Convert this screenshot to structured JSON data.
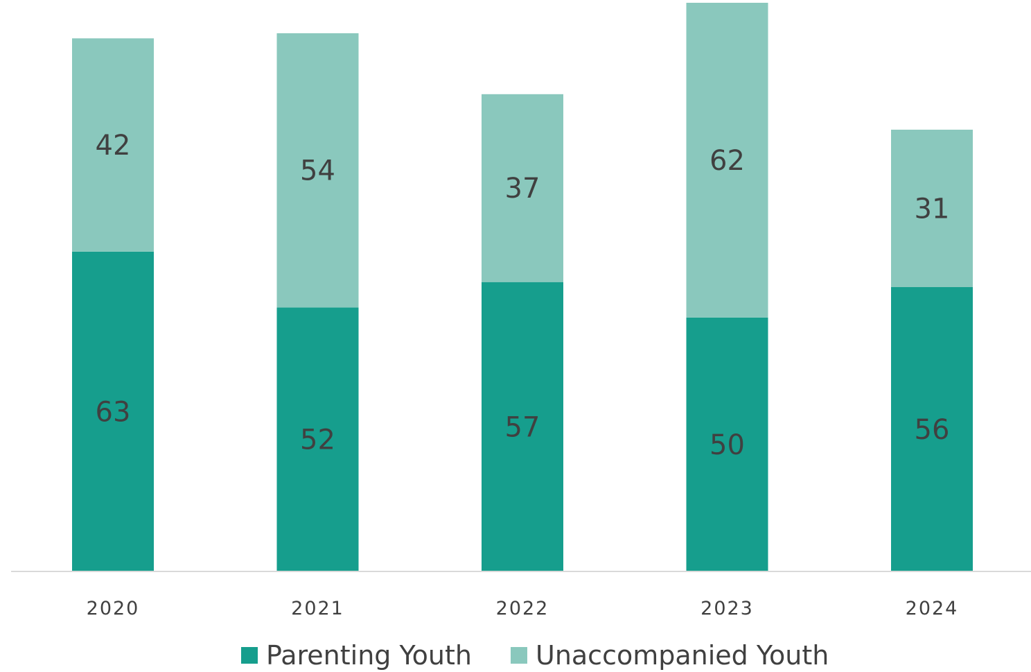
{
  "chart_data": {
    "type": "bar",
    "stacked": true,
    "categories": [
      "2020",
      "2021",
      "2022",
      "2023",
      "2024"
    ],
    "series": [
      {
        "name": "Parenting Youth",
        "color": "#169E8D",
        "values": [
          63,
          52,
          57,
          50,
          56
        ]
      },
      {
        "name": "Unaccompanied Youth",
        "color": "#8AC8BD",
        "values": [
          42,
          54,
          37,
          62,
          31
        ]
      }
    ],
    "ylim": [
      0,
      112
    ],
    "grid": false,
    "legend_position": "bottom",
    "axis_color": "#D9D9D9"
  }
}
